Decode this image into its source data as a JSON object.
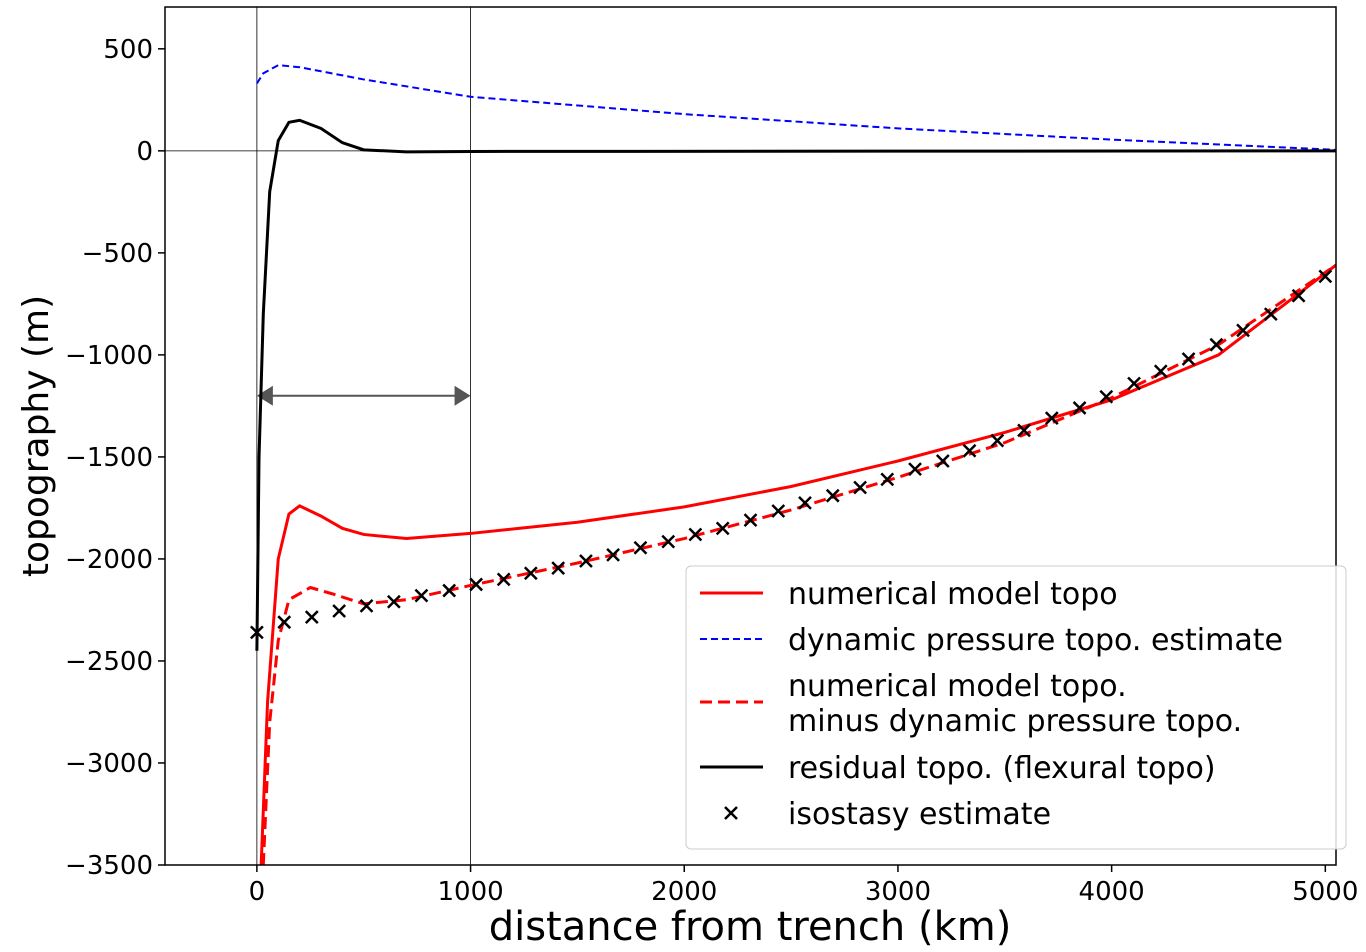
{
  "chart_data": {
    "type": "line",
    "xlabel": "distance from trench (km)",
    "ylabel": "topography (m)",
    "xlim": [
      -430,
      5050
    ],
    "ylim": [
      -3500,
      705
    ],
    "xticks": [
      0,
      1000,
      2000,
      3000,
      4000,
      5000
    ],
    "yticks": [
      {
        "value": -3500,
        "label": "−3500"
      },
      {
        "value": -3000,
        "label": "−3000"
      },
      {
        "value": -2500,
        "label": "−2500"
      },
      {
        "value": -2000,
        "label": "−2000"
      },
      {
        "value": -1500,
        "label": "−1500"
      },
      {
        "value": -1000,
        "label": "−1000"
      },
      {
        "value": -500,
        "label": "−500"
      },
      0,
      500
    ],
    "vlines": [
      0,
      1000
    ],
    "hlines": [
      0
    ],
    "arrow": {
      "x": [
        0,
        1000
      ],
      "y": -1200,
      "color": "#555555"
    },
    "legend": "lower right",
    "series": [
      {
        "name": "numerical model topo",
        "color": "#ff0000",
        "style": "solid",
        "x": [
          20,
          50,
          100,
          150,
          200,
          300,
          400,
          500,
          700,
          1000,
          1500,
          2000,
          2500,
          3000,
          3500,
          4000,
          4500,
          5050
        ],
        "values": [
          -3500,
          -2700,
          -2000,
          -1780,
          -1740,
          -1790,
          -1850,
          -1880,
          -1900,
          -1875,
          -1820,
          -1745,
          -1645,
          -1520,
          -1380,
          -1220,
          -1000,
          -560
        ]
      },
      {
        "name": "dynamic pressure topo. estimate",
        "color": "#0000ff",
        "style": "dashed",
        "x": [
          0,
          30,
          100,
          200,
          500,
          1000,
          2000,
          3000,
          4000,
          5050
        ],
        "values": [
          330,
          380,
          420,
          410,
          350,
          265,
          180,
          110,
          55,
          5
        ]
      },
      {
        "name": "numerical model topo.\nminus dynamic pressure topo.",
        "color": "#ff0000",
        "style": "dashed-thick",
        "x": [
          30,
          60,
          100,
          150,
          250,
          350,
          500,
          700,
          1000,
          1500,
          2000,
          2500,
          3000,
          3500,
          4000,
          4500,
          5050
        ],
        "values": [
          -3500,
          -2800,
          -2400,
          -2200,
          -2140,
          -2170,
          -2220,
          -2200,
          -2130,
          -2020,
          -1900,
          -1760,
          -1600,
          -1430,
          -1210,
          -950,
          -560
        ]
      },
      {
        "name": "residual topo. (flexural topo)",
        "color": "#000000",
        "style": "solid",
        "x": [
          0,
          10,
          30,
          60,
          100,
          150,
          200,
          300,
          400,
          500,
          700,
          1000,
          5050
        ],
        "values": [
          -2450,
          -1500,
          -800,
          -200,
          50,
          140,
          150,
          110,
          40,
          5,
          -5,
          -3,
          0
        ]
      },
      {
        "name": "isostasy estimate",
        "color": "#000000",
        "style": "markers",
        "x": [
          0,
          128,
          257,
          385,
          513,
          641,
          770,
          900,
          1026,
          1155,
          1282,
          1410,
          1540,
          1667,
          1795,
          1925,
          2052,
          2180,
          2310,
          2440,
          2565,
          2695,
          2823,
          2950,
          3080,
          3210,
          3335,
          3465,
          3590,
          3720,
          3850,
          3975,
          4105,
          4230,
          4360,
          4490,
          4615,
          4745,
          4875,
          5000
        ],
        "values": [
          -2360,
          -2310,
          -2285,
          -2255,
          -2230,
          -2210,
          -2180,
          -2155,
          -2125,
          -2100,
          -2070,
          -2045,
          -2010,
          -1980,
          -1945,
          -1915,
          -1880,
          -1850,
          -1810,
          -1765,
          -1725,
          -1690,
          -1650,
          -1610,
          -1560,
          -1520,
          -1470,
          -1420,
          -1370,
          -1310,
          -1260,
          -1205,
          -1140,
          -1080,
          -1020,
          -950,
          -880,
          -800,
          -710,
          -615
        ]
      }
    ]
  }
}
